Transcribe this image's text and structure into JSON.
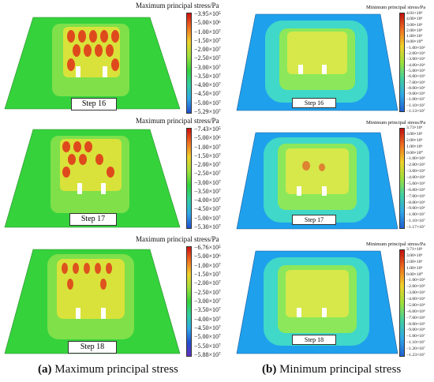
{
  "captions": {
    "a_letter": "(a)",
    "a_text": "Maximum principal stress",
    "b_letter": "(b)",
    "b_text": "Minimum principal stress"
  },
  "panels_a": [
    {
      "title": "Maximum principal stress/Pa",
      "step": "Step 16",
      "ticks": [
        "−3.95×10⁵",
        "−5.00×10⁶",
        "−1.00×10⁷",
        "−1.50×10⁷",
        "−2.00×10⁷",
        "−2.50×10⁷",
        "−3.00×10⁷",
        "−3.50×10⁷",
        "−4.00×10⁷",
        "−4.50×10⁷",
        "−5.00×10⁷",
        "−5.29×10⁷"
      ]
    },
    {
      "title": "Maximum principal stress/Pa",
      "step": "Step 17",
      "ticks": [
        "−7.43×10⁵",
        "−5.00×10⁶",
        "−1.00×10⁷",
        "−1.50×10⁷",
        "−2.00×10⁷",
        "−2.50×10⁷",
        "−3.00×10⁷",
        "−3.50×10⁷",
        "−4.00×10⁷",
        "−4.50×10⁷",
        "−5.00×10⁷",
        "−5.30×10⁷"
      ]
    },
    {
      "title": "Maximum principal stress/Pa",
      "step": "Step 18",
      "ticks": [
        "−6.76×10⁵",
        "−5.00×10⁶",
        "−1.00×10⁷",
        "−1.50×10⁷",
        "−2.00×10⁷",
        "−2.50×10⁷",
        "−3.00×10⁷",
        "−3.50×10⁷",
        "−4.00×10⁷",
        "−4.50×10⁷",
        "−5.00×10⁷",
        "−5.50×10⁷",
        "−5.88×10⁷"
      ]
    }
  ],
  "panels_b": [
    {
      "title": "Minimum principal stress/Pa",
      "step": "Step 16",
      "ticks": [
        "4.01×10⁶",
        "4.00×10⁶",
        "3.00×10⁶",
        "2.00×10⁶",
        "1.00×10⁶",
        "0.00×10⁰",
        "−1.00×10⁶",
        "−2.00×10⁶",
        "−3.00×10⁶",
        "−4.00×10⁶",
        "−5.00×10⁶",
        "−6.00×10⁶",
        "−7.00×10⁶",
        "−8.00×10⁶",
        "−9.00×10⁶",
        "−1.00×10⁷",
        "−1.10×10⁷",
        "−1.13×10⁷"
      ]
    },
    {
      "title": "Minimum principal stress/Pa",
      "step": "Step 17",
      "ticks": [
        "3.73×10⁶",
        "3.00×10⁶",
        "2.00×10⁶",
        "1.00×10⁶",
        "0.00×10⁰",
        "−1.00×10⁶",
        "−2.00×10⁶",
        "−3.00×10⁶",
        "−4.00×10⁶",
        "−5.00×10⁶",
        "−6.00×10⁶",
        "−7.00×10⁶",
        "−8.00×10⁶",
        "−9.00×10⁶",
        "−1.00×10⁷",
        "−1.10×10⁷",
        "−1.17×10⁷"
      ]
    },
    {
      "title": "Minimum principal stress/Pa",
      "step": "Step 18",
      "ticks": [
        "3.71×10⁶",
        "3.00×10⁶",
        "2.00×10⁶",
        "1.00×10⁶",
        "0.00×10⁰",
        "−1.00×10⁶",
        "−2.00×10⁶",
        "−3.00×10⁶",
        "−4.00×10⁶",
        "−5.00×10⁶",
        "−6.00×10⁶",
        "−7.00×10⁶",
        "−8.00×10⁶",
        "−9.00×10⁶",
        "−1.00×10⁷",
        "−1.10×10⁷",
        "−1.20×10⁷",
        "−1.23×10⁷"
      ]
    }
  ],
  "colors": {
    "plate_a": "#35d23c",
    "plate_b": "#1fa0ec",
    "hot": "#e03a1a",
    "warm": "#f0d02a"
  }
}
